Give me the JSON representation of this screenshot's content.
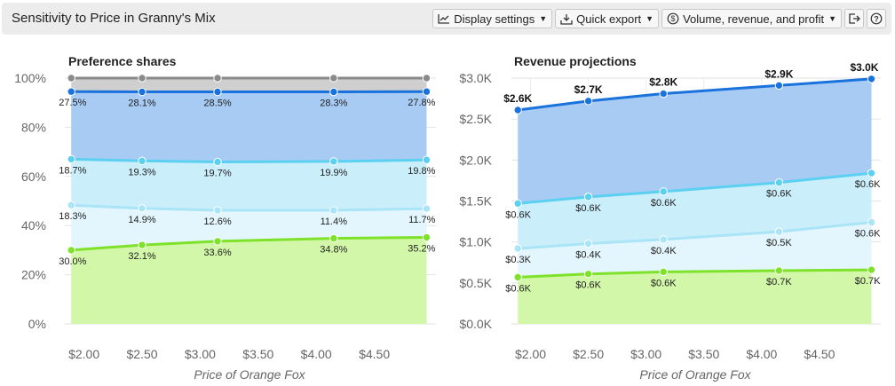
{
  "header": {
    "title": "Sensitivity to Price in Granny's Mix",
    "display_settings_label": "Display settings",
    "quick_export_label": "Quick export",
    "metric_label": "Volume, revenue, and profit"
  },
  "chart_data": [
    {
      "type": "area",
      "stacked": true,
      "title": "Preference shares",
      "xlabel": "Price of Orange Fox",
      "ylabel": "",
      "x": [
        1.89,
        2.5,
        3.15,
        4.15,
        4.95
      ],
      "xticks": [
        2.0,
        2.5,
        3.0,
        3.5,
        4.0,
        4.5
      ],
      "xtick_labels": [
        "$2.00",
        "$2.50",
        "$3.00",
        "$3.50",
        "$4.00",
        "$4.50"
      ],
      "ylim": [
        0,
        100
      ],
      "yticks": [
        0,
        20,
        40,
        60,
        80,
        100
      ],
      "ytick_labels": [
        "0%",
        "20%",
        "40%",
        "60%",
        "80%",
        "100%"
      ],
      "grid": true,
      "series": [
        {
          "color": "#7ee22a",
          "fill": "#d3f7a9",
          "values": [
            30.0,
            32.1,
            33.6,
            34.8,
            35.2
          ],
          "labels": [
            "30.0%",
            "32.1%",
            "33.6%",
            "34.8%",
            "35.2%"
          ]
        },
        {
          "color": "#a9e4f7",
          "fill": "#e3f6fd",
          "values": [
            18.3,
            14.9,
            12.6,
            11.4,
            11.7
          ],
          "labels": [
            "18.3%",
            "14.9%",
            "12.6%",
            "11.4%",
            "11.7%"
          ]
        },
        {
          "color": "#5cd0f0",
          "fill": "#cbeefb",
          "values": [
            18.7,
            19.3,
            19.7,
            19.9,
            19.8
          ],
          "labels": [
            "18.7%",
            "19.3%",
            "19.7%",
            "19.9%",
            "19.8%"
          ]
        },
        {
          "color": "#1a72dd",
          "fill": "#a8cbf3",
          "values": [
            27.5,
            28.1,
            28.5,
            28.3,
            27.8
          ],
          "labels": [
            "27.5%",
            "28.1%",
            "28.5%",
            "28.3%",
            "27.8%"
          ]
        },
        {
          "color": "#8a8a8a",
          "fill": "#cfcfcf",
          "values": [
            5.5,
            5.6,
            5.6,
            5.6,
            5.5
          ],
          "labels": [
            "",
            "",
            "",
            "",
            ""
          ]
        }
      ]
    },
    {
      "type": "area",
      "stacked": true,
      "title": "Revenue projections",
      "xlabel": "Price of Orange Fox",
      "ylabel": "",
      "x": [
        1.89,
        2.5,
        3.15,
        4.15,
        4.95
      ],
      "xticks": [
        2.0,
        2.5,
        3.0,
        3.5,
        4.0,
        4.5
      ],
      "xtick_labels": [
        "$2.00",
        "$2.50",
        "$3.00",
        "$3.50",
        "$4.00",
        "$4.50"
      ],
      "ylim": [
        0,
        3000
      ],
      "yticks": [
        0,
        500,
        1000,
        1500,
        2000,
        2500,
        3000
      ],
      "ytick_labels": [
        "$0.0K",
        "$0.5K",
        "$1.0K",
        "$1.5K",
        "$2.0K",
        "$2.5K",
        "$3.0K"
      ],
      "grid": true,
      "totals": [
        2610,
        2720,
        2810,
        2910,
        2990
      ],
      "total_labels": [
        "$2.6K",
        "$2.7K",
        "$2.8K",
        "$2.9K",
        "$3.0K"
      ],
      "series": [
        {
          "color": "#7ee22a",
          "fill": "#d3f7a9",
          "values": [
            570,
            610,
            635,
            650,
            660
          ],
          "labels": [
            "$0.6K",
            "$0.6K",
            "$0.6K",
            "$0.7K",
            "$0.7K"
          ]
        },
        {
          "color": "#a9e4f7",
          "fill": "#e3f6fd",
          "values": [
            350,
            370,
            395,
            475,
            580
          ],
          "labels": [
            "$0.3K",
            "$0.4K",
            "$0.4K",
            "$0.5K",
            "$0.6K"
          ]
        },
        {
          "color": "#5cd0f0",
          "fill": "#cbeefb",
          "values": [
            550,
            570,
            585,
            600,
            600
          ],
          "labels": [
            "$0.6K",
            "$0.6K",
            "$0.6K",
            "$0.6K",
            "$0.6K"
          ]
        },
        {
          "color": "#1a72dd",
          "fill": "#a8cbf3",
          "values": [
            1140,
            1170,
            1195,
            1185,
            1150
          ],
          "labels": [
            "",
            "",
            "",
            "",
            ""
          ]
        }
      ]
    }
  ]
}
